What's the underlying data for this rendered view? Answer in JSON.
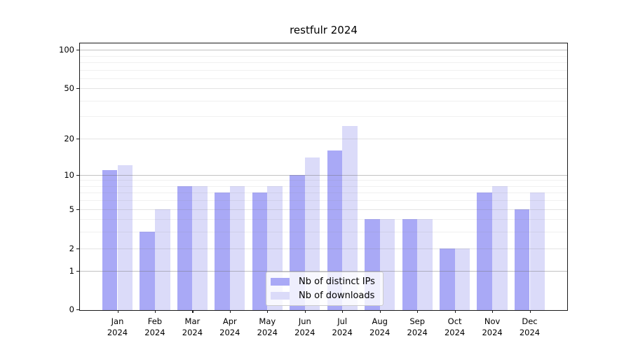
{
  "title": "restfulr 2024",
  "year": "2024",
  "legend": {
    "items": [
      {
        "label": "Nb of distinct IPs",
        "swatch": "ip-series-swatch"
      },
      {
        "label": "Nb of downloads",
        "swatch": "download-series-swatch"
      }
    ]
  },
  "colors": {
    "ip_bar": "#a9a9f6",
    "download_bar": "#dbdbf9",
    "grid_major": "rgba(110,110,110,0.42)",
    "grid_labeled": "rgba(120,120,120,0.20)",
    "grid_minor": "rgba(130,130,130,0.12)",
    "axis": "#1a1a1a"
  },
  "chart_data": {
    "type": "bar",
    "title": "restfulr 2024",
    "categories": [
      "Jan",
      "Feb",
      "Mar",
      "Apr",
      "May",
      "Jun",
      "Jul",
      "Aug",
      "Sep",
      "Oct",
      "Nov",
      "Dec"
    ],
    "category_year": "2024",
    "series": [
      {
        "name": "Nb of distinct IPs",
        "color": "#a9a9f6",
        "values": [
          11,
          3,
          8,
          7,
          7,
          10,
          16,
          4,
          4,
          2,
          7,
          5
        ]
      },
      {
        "name": "Nb of downloads",
        "color": "#dbdbf9",
        "values": [
          12,
          5,
          8,
          8,
          8,
          14,
          25,
          4,
          4,
          2,
          8,
          7
        ]
      }
    ],
    "xlabel": "",
    "ylabel": "",
    "yscale": "log1p",
    "ylim": [
      0,
      112
    ],
    "ytick_labels": [
      100,
      50,
      20,
      10,
      5,
      2,
      1,
      0
    ],
    "grid_major_values": [
      1,
      10,
      100
    ],
    "grid_labeled_values": [
      2,
      5,
      20,
      50
    ],
    "grid_minor_values": [
      3,
      4,
      6,
      7,
      8,
      9,
      30,
      40,
      60,
      70,
      80,
      90
    ],
    "grid": true,
    "legend_position": "lower center inside plot"
  }
}
